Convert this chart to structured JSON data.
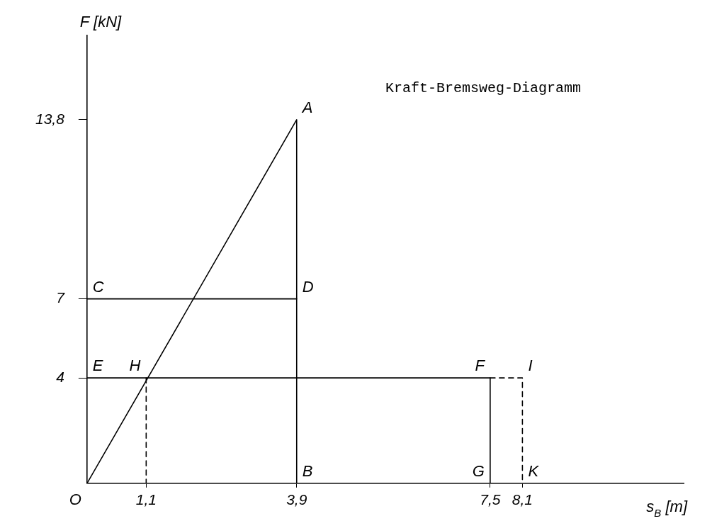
{
  "chart_data": {
    "type": "line",
    "title": "Kraft-Bremsweg-Diagramm",
    "xlabel": "s$_{B}$ [m]",
    "ylabel": "F [kN]",
    "xlim": [
      0,
      11.1
    ],
    "ylim": [
      0,
      17
    ],
    "xticks": [
      {
        "value": 1.1,
        "label": "1,1"
      },
      {
        "value": 3.9,
        "label": "3,9"
      },
      {
        "value": 7.5,
        "label": "7,5"
      },
      {
        "value": 8.1,
        "label": "8,1"
      }
    ],
    "yticks": [
      4,
      7,
      {
        "value": 13.8,
        "label": "13,8"
      }
    ],
    "grid": false,
    "legend": false,
    "marker": "none",
    "line_style": "solid",
    "series": [
      {
        "color": "#000000",
        "x": [
          0,
          3.9,
          3.9
        ],
        "values": [
          0,
          13.8,
          0
        ]
      },
      {
        "color": "#000000",
        "x": [
          0,
          3.9
        ],
        "values": [
          7,
          7
        ]
      },
      {
        "color": "#000000",
        "x": [
          0,
          7.5,
          7.5
        ],
        "values": [
          4,
          4,
          0
        ]
      },
      {
        "color": "#000000",
        "x": [
          7.5,
          8.1,
          8.1
        ],
        "values": [
          4,
          4,
          0
        ],
        "line_style": "dashed"
      },
      {
        "color": "#000000",
        "x": [
          1.1,
          1.1
        ],
        "values": [
          4,
          0
        ],
        "line_style": "dashed"
      }
    ],
    "annotations": [
      {
        "text": "O",
        "x": 0,
        "y": 0
      },
      {
        "text": "A",
        "x": 3.9,
        "y": 13.8
      },
      {
        "text": "B",
        "x": 3.9,
        "y": 0
      },
      {
        "text": "C",
        "x": 0,
        "y": 7
      },
      {
        "text": "D",
        "x": 3.9,
        "y": 7
      },
      {
        "text": "E",
        "x": 0,
        "y": 4
      },
      {
        "text": "F",
        "x": 7.5,
        "y": 4
      },
      {
        "text": "G",
        "x": 7.5,
        "y": 0
      },
      {
        "text": "H",
        "x": 1.1,
        "y": 4
      },
      {
        "text": "I",
        "x": 8.1,
        "y": 4
      },
      {
        "text": "K",
        "x": 8.1,
        "y": 0
      }
    ]
  }
}
